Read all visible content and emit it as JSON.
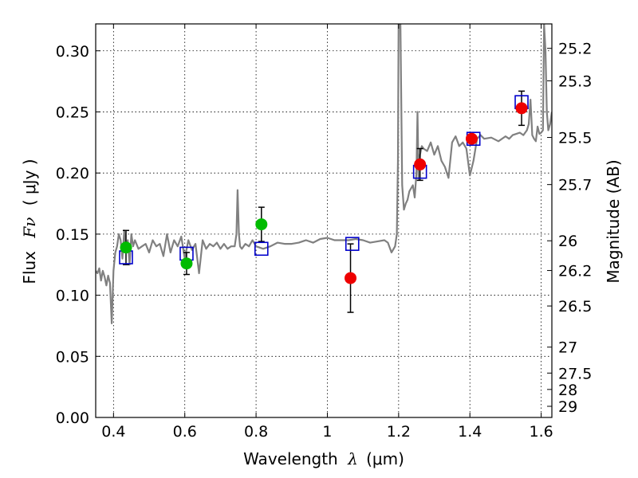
{
  "chart_data": {
    "type": "scatter",
    "xlabel": "Wavelength",
    "xlabel_symbol": "λ",
    "xlabel_unit": "(μm)",
    "ylabel": "Flux",
    "ylabel_symbol": "Fν",
    "ylabel_unit": "( μJy )",
    "y2label": "Magnitude (AB)",
    "xlim": [
      0.35,
      1.63
    ],
    "ylim": [
      0.0,
      0.322
    ],
    "grid": true,
    "x_ticks": [
      0.4,
      0.6,
      0.8,
      1.0,
      1.2,
      1.4,
      1.6
    ],
    "x_tick_labels": [
      "0.4",
      "0.6",
      "0.8",
      "1",
      "1.2",
      "1.4",
      "1.6"
    ],
    "y_ticks": [
      0.0,
      0.05,
      0.1,
      0.15,
      0.2,
      0.25,
      0.3
    ],
    "y_tick_labels": [
      "0.00",
      "0.05",
      "0.10",
      "0.15",
      "0.20",
      "0.25",
      "0.30"
    ],
    "mag_ticks": [
      "25.2",
      "25.3",
      "25.5",
      "25.7",
      "26",
      "26.2",
      "26.5",
      "27",
      "27.5",
      "28",
      "29"
    ],
    "colors": {
      "spectrum": "#808080",
      "model_box": "#0000cc",
      "green_points": "#00bb00",
      "red_points": "#ee0000",
      "errorbar": "#000000"
    },
    "spectrum": {
      "x": [
        0.35,
        0.355,
        0.36,
        0.365,
        0.37,
        0.375,
        0.38,
        0.385,
        0.39,
        0.395,
        0.4,
        0.405,
        0.41,
        0.415,
        0.42,
        0.425,
        0.43,
        0.435,
        0.44,
        0.445,
        0.45,
        0.455,
        0.46,
        0.47,
        0.48,
        0.49,
        0.5,
        0.51,
        0.52,
        0.53,
        0.54,
        0.55,
        0.56,
        0.57,
        0.58,
        0.59,
        0.6,
        0.61,
        0.62,
        0.63,
        0.64,
        0.65,
        0.66,
        0.67,
        0.68,
        0.69,
        0.7,
        0.71,
        0.72,
        0.73,
        0.74,
        0.745,
        0.748,
        0.752,
        0.755,
        0.76,
        0.77,
        0.78,
        0.79,
        0.8,
        0.82,
        0.84,
        0.86,
        0.88,
        0.9,
        0.92,
        0.94,
        0.96,
        0.98,
        1.0,
        1.02,
        1.04,
        1.06,
        1.08,
        1.1,
        1.12,
        1.14,
        1.16,
        1.17,
        1.18,
        1.19,
        1.195,
        1.198,
        1.2,
        1.202,
        1.205,
        1.21,
        1.215,
        1.22,
        1.225,
        1.23,
        1.24,
        1.245,
        1.25,
        1.253,
        1.256,
        1.26,
        1.265,
        1.27,
        1.28,
        1.29,
        1.3,
        1.31,
        1.32,
        1.33,
        1.34,
        1.35,
        1.36,
        1.37,
        1.38,
        1.39,
        1.4,
        1.41,
        1.42,
        1.43,
        1.44,
        1.46,
        1.48,
        1.5,
        1.51,
        1.52,
        1.53,
        1.54,
        1.55,
        1.56,
        1.565,
        1.57,
        1.575,
        1.58,
        1.585,
        1.59,
        1.595,
        1.6,
        1.605,
        1.608,
        1.612,
        1.616,
        1.62,
        1.625,
        1.63
      ],
      "y": [
        0.12,
        0.118,
        0.122,
        0.112,
        0.12,
        0.115,
        0.108,
        0.116,
        0.11,
        0.077,
        0.12,
        0.135,
        0.14,
        0.15,
        0.145,
        0.13,
        0.153,
        0.138,
        0.145,
        0.125,
        0.15,
        0.14,
        0.145,
        0.138,
        0.14,
        0.142,
        0.135,
        0.145,
        0.14,
        0.142,
        0.132,
        0.15,
        0.135,
        0.145,
        0.14,
        0.148,
        0.13,
        0.145,
        0.137,
        0.142,
        0.118,
        0.145,
        0.138,
        0.142,
        0.14,
        0.143,
        0.138,
        0.142,
        0.138,
        0.14,
        0.14,
        0.15,
        0.186,
        0.15,
        0.14,
        0.138,
        0.142,
        0.14,
        0.145,
        0.14,
        0.138,
        0.14,
        0.143,
        0.142,
        0.142,
        0.143,
        0.145,
        0.143,
        0.146,
        0.147,
        0.145,
        0.145,
        0.145,
        0.146,
        0.145,
        0.143,
        0.144,
        0.145,
        0.143,
        0.135,
        0.14,
        0.15,
        0.21,
        0.322,
        0.322,
        0.322,
        0.19,
        0.17,
        0.175,
        0.178,
        0.185,
        0.19,
        0.18,
        0.2,
        0.25,
        0.195,
        0.215,
        0.222,
        0.22,
        0.218,
        0.225,
        0.215,
        0.222,
        0.21,
        0.205,
        0.196,
        0.225,
        0.23,
        0.222,
        0.225,
        0.22,
        0.198,
        0.21,
        0.228,
        0.231,
        0.228,
        0.229,
        0.226,
        0.23,
        0.228,
        0.231,
        0.232,
        0.233,
        0.231,
        0.235,
        0.24,
        0.26,
        0.231,
        0.228,
        0.226,
        0.238,
        0.232,
        0.233,
        0.235,
        0.322,
        0.3,
        0.25,
        0.235,
        0.24,
        0.25
      ]
    },
    "series": [
      {
        "marker": "square-open",
        "color": "#0000cc",
        "x": [
          0.435,
          0.605,
          0.815,
          1.07,
          1.26,
          1.41,
          1.545
        ],
        "y": [
          0.131,
          0.134,
          0.138,
          0.142,
          0.201,
          0.228,
          0.258
        ]
      },
      {
        "marker": "circle",
        "color": "#00bb00",
        "x": [
          0.435,
          0.605,
          0.815
        ],
        "y": [
          0.139,
          0.126,
          0.158
        ],
        "yerr": [
          0.014,
          0.009,
          0.014
        ]
      },
      {
        "marker": "circle",
        "color": "#ee0000",
        "x": [
          1.065,
          1.26,
          1.405,
          1.545
        ],
        "y": [
          0.114,
          0.207,
          0.228,
          0.253
        ],
        "yerr": [
          0.028,
          0.013,
          0.0,
          0.014
        ]
      }
    ]
  }
}
